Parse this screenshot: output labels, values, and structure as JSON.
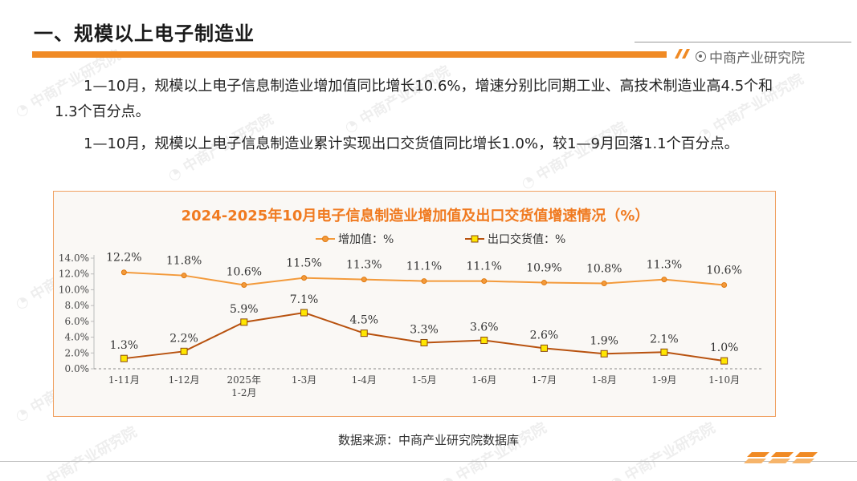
{
  "header": {
    "title": "一、规模以上电子制造业",
    "brand": "中商产业研究院"
  },
  "paragraphs": [
    "1—10月，规模以上电子信息制造业增加值同比增长10.6%，增速分别比同期工业、高技术制造业高4.5个和1.3个百分点。",
    "1—10月，规模以上电子信息制造业累计实现出口交货值同比增长1.0%，较1—9月回落1.1个百分点。"
  ],
  "footer": {
    "source": "数据来源：中商产业研究院数据库"
  },
  "colors": {
    "accent": "#f08a24",
    "title": "#f07a20",
    "series1": "#f39a3b",
    "series2": "#b8520f",
    "marker2": "#ffe600"
  },
  "chart_data": {
    "type": "line",
    "title": "2024-2025年10月电子信息制造业增加值及出口交货值增速情况（%）",
    "categories": [
      "1-11月",
      "1-12月",
      "2025年\n1-2月",
      "1-3月",
      "1-4月",
      "1-5月",
      "1-6月",
      "1-7月",
      "1-8月",
      "1-9月",
      "1-10月"
    ],
    "series": [
      {
        "name": "增加值：%",
        "values": [
          12.2,
          11.8,
          10.6,
          11.5,
          11.3,
          11.1,
          11.1,
          10.9,
          10.8,
          11.3,
          10.6
        ]
      },
      {
        "name": "出口交货值：%",
        "values": [
          1.3,
          2.2,
          5.9,
          7.1,
          4.5,
          3.3,
          3.6,
          2.6,
          1.9,
          2.1,
          1.0
        ]
      }
    ],
    "y_ticks": [
      "0.0%",
      "2.0%",
      "4.0%",
      "6.0%",
      "8.0%",
      "10.0%",
      "12.0%",
      "14.0%"
    ],
    "ylim": [
      0,
      14
    ],
    "legend": "top-center",
    "xlabel": "",
    "ylabel": ""
  }
}
